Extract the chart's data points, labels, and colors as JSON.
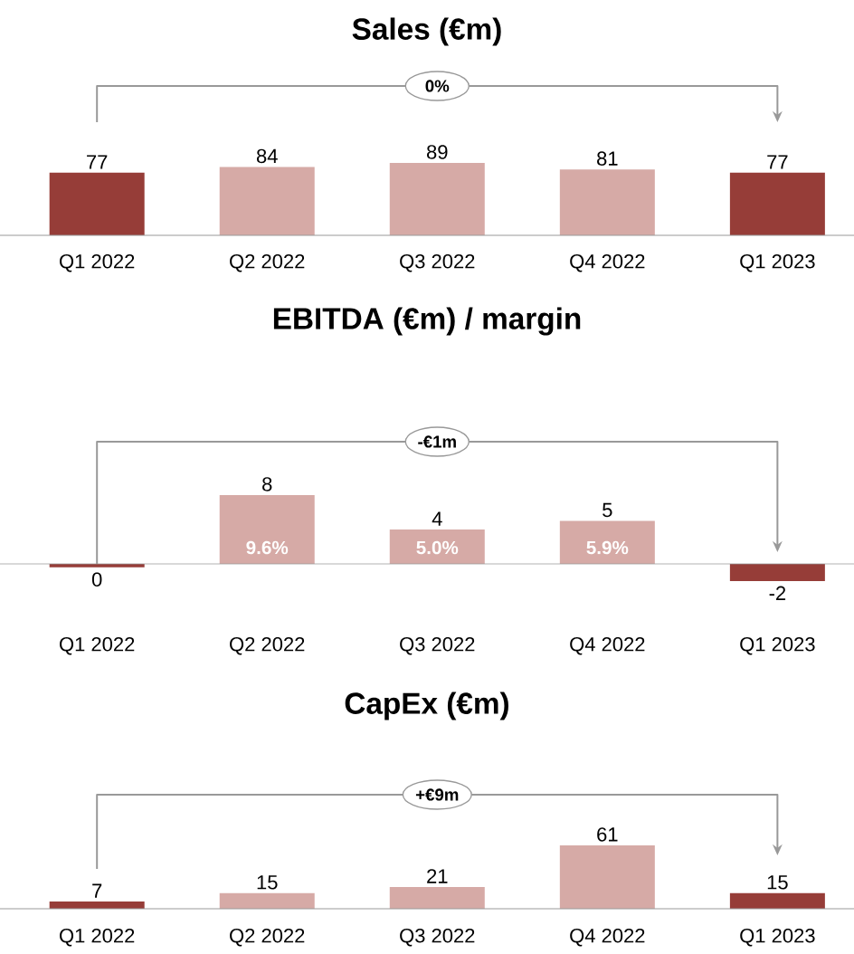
{
  "chart_data": [
    {
      "type": "bar",
      "title": "Sales (€m)",
      "categories": [
        "Q1 2022",
        "Q2 2022",
        "Q3 2022",
        "Q4 2022",
        "Q1 2023"
      ],
      "values": [
        77,
        84,
        89,
        81,
        77
      ],
      "colors": [
        "#963d38",
        "#d6aaa6",
        "#d6aaa6",
        "#d6aaa6",
        "#963d38"
      ],
      "data_labels": true,
      "annotations": [
        "0%"
      ]
    },
    {
      "type": "bar",
      "title": "EBITDA (€m) / margin",
      "categories": [
        "Q1 2022",
        "Q2 2022",
        "Q3 2022",
        "Q4 2022",
        "Q1 2023"
      ],
      "values": [
        -0.4,
        8,
        4,
        5,
        -2
      ],
      "value_labels": [
        "0",
        "8",
        "4",
        "5",
        "-2"
      ],
      "colors": [
        "#963d38",
        "#d6aaa6",
        "#d6aaa6",
        "#d6aaa6",
        "#963d38"
      ],
      "annotations": [
        "-€1m",
        "9.6%",
        "5.0%",
        "5.9%"
      ]
    },
    {
      "type": "bar",
      "title": "CapEx (€m)",
      "categories": [
        "Q1 2022",
        "Q2 2022",
        "Q3 2022",
        "Q4 2022",
        "Q1 2023"
      ],
      "values": [
        7,
        15,
        21,
        61,
        15
      ],
      "colors": [
        "#963d38",
        "#d6aaa6",
        "#d6aaa6",
        "#d6aaa6",
        "#963d38"
      ],
      "data_labels": true,
      "annotations": [
        "+€9m"
      ]
    }
  ]
}
